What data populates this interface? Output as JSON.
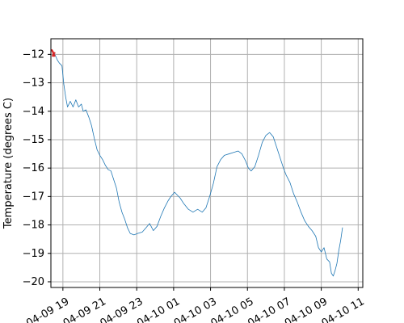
{
  "chart_data": {
    "type": "line",
    "title": "",
    "xlabel": "",
    "ylabel": "Temperature (degrees C)",
    "xlim": [
      18.35,
      35.25
    ],
    "ylim": [
      -20.2,
      -11.45
    ],
    "grid": true,
    "x_ticks": [
      {
        "x": 19,
        "label": "04-09 19"
      },
      {
        "x": 21,
        "label": "04-09 21"
      },
      {
        "x": 23,
        "label": "04-09 23"
      },
      {
        "x": 25,
        "label": "04-10 01"
      },
      {
        "x": 27,
        "label": "04-10 03"
      },
      {
        "x": 29,
        "label": "04-10 05"
      },
      {
        "x": 31,
        "label": "04-10 07"
      },
      {
        "x": 33,
        "label": "04-10 09"
      },
      {
        "x": 35,
        "label": "04-10 11"
      }
    ],
    "y_ticks": [
      -12,
      -13,
      -14,
      -15,
      -16,
      -17,
      -18,
      -19,
      -20
    ],
    "series": [
      {
        "color": "#1f77b4",
        "points": [
          [
            18.4,
            -11.85
          ],
          [
            18.5,
            -11.95
          ],
          [
            18.6,
            -12.05
          ],
          [
            18.7,
            -12.2
          ],
          [
            18.8,
            -12.3
          ],
          [
            18.95,
            -12.4
          ],
          [
            19.05,
            -13.05
          ],
          [
            19.15,
            -13.5
          ],
          [
            19.25,
            -13.85
          ],
          [
            19.4,
            -13.65
          ],
          [
            19.55,
            -13.85
          ],
          [
            19.7,
            -13.6
          ],
          [
            19.85,
            -13.85
          ],
          [
            20.0,
            -13.75
          ],
          [
            20.1,
            -14.0
          ],
          [
            20.25,
            -13.95
          ],
          [
            20.4,
            -14.2
          ],
          [
            20.55,
            -14.5
          ],
          [
            20.7,
            -14.95
          ],
          [
            20.85,
            -15.35
          ],
          [
            21.0,
            -15.55
          ],
          [
            21.15,
            -15.7
          ],
          [
            21.3,
            -15.9
          ],
          [
            21.45,
            -16.05
          ],
          [
            21.6,
            -16.1
          ],
          [
            21.75,
            -16.4
          ],
          [
            21.9,
            -16.7
          ],
          [
            22.05,
            -17.2
          ],
          [
            22.2,
            -17.55
          ],
          [
            22.35,
            -17.8
          ],
          [
            22.5,
            -18.1
          ],
          [
            22.65,
            -18.3
          ],
          [
            22.85,
            -18.35
          ],
          [
            23.05,
            -18.3
          ],
          [
            23.3,
            -18.25
          ],
          [
            23.5,
            -18.1
          ],
          [
            23.7,
            -17.95
          ],
          [
            23.9,
            -18.2
          ],
          [
            24.1,
            -18.05
          ],
          [
            24.3,
            -17.7
          ],
          [
            24.5,
            -17.4
          ],
          [
            24.7,
            -17.15
          ],
          [
            24.85,
            -17.0
          ],
          [
            25.05,
            -16.85
          ],
          [
            25.2,
            -16.95
          ],
          [
            25.35,
            -17.05
          ],
          [
            25.55,
            -17.25
          ],
          [
            25.8,
            -17.45
          ],
          [
            26.05,
            -17.55
          ],
          [
            26.3,
            -17.45
          ],
          [
            26.55,
            -17.55
          ],
          [
            26.75,
            -17.4
          ],
          [
            26.95,
            -17.0
          ],
          [
            27.15,
            -16.55
          ],
          [
            27.35,
            -15.95
          ],
          [
            27.55,
            -15.7
          ],
          [
            27.75,
            -15.55
          ],
          [
            28.0,
            -15.5
          ],
          [
            28.25,
            -15.45
          ],
          [
            28.5,
            -15.4
          ],
          [
            28.7,
            -15.5
          ],
          [
            28.9,
            -15.75
          ],
          [
            29.05,
            -16.0
          ],
          [
            29.2,
            -16.1
          ],
          [
            29.4,
            -15.95
          ],
          [
            29.6,
            -15.55
          ],
          [
            29.8,
            -15.1
          ],
          [
            30.0,
            -14.85
          ],
          [
            30.2,
            -14.75
          ],
          [
            30.4,
            -14.9
          ],
          [
            30.6,
            -15.3
          ],
          [
            30.8,
            -15.7
          ],
          [
            30.95,
            -16.0
          ],
          [
            31.1,
            -16.25
          ],
          [
            31.3,
            -16.5
          ],
          [
            31.5,
            -16.9
          ],
          [
            31.7,
            -17.2
          ],
          [
            31.9,
            -17.55
          ],
          [
            32.1,
            -17.85
          ],
          [
            32.3,
            -18.05
          ],
          [
            32.5,
            -18.2
          ],
          [
            32.7,
            -18.4
          ],
          [
            32.85,
            -18.8
          ],
          [
            33.0,
            -18.95
          ],
          [
            33.15,
            -18.8
          ],
          [
            33.3,
            -19.2
          ],
          [
            33.45,
            -19.3
          ],
          [
            33.55,
            -19.7
          ],
          [
            33.65,
            -19.8
          ],
          [
            33.75,
            -19.6
          ],
          [
            33.85,
            -19.35
          ],
          [
            33.95,
            -18.9
          ],
          [
            34.05,
            -18.55
          ],
          [
            34.15,
            -18.1
          ]
        ]
      },
      {
        "color": "#d62728",
        "points": [
          [
            18.4,
            -11.85
          ],
          [
            18.45,
            -11.9
          ],
          [
            18.5,
            -12.0
          ],
          [
            18.55,
            -12.05
          ],
          [
            18.45,
            -12.05
          ],
          [
            18.5,
            -11.95
          ],
          [
            18.55,
            -11.95
          ]
        ]
      }
    ]
  }
}
